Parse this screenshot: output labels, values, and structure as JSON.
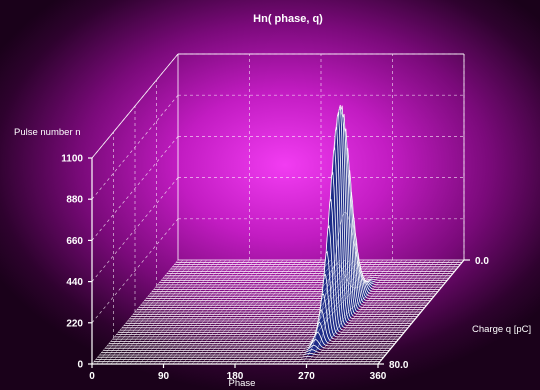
{
  "chart_data": {
    "type": "surface3d",
    "title": "Hn( phase, q)",
    "xlabel": "Phase",
    "ylabel": "Charge q  [pC]",
    "zlabel": "Pulse number n",
    "x_ticks": [
      "0",
      "90",
      "180",
      "270",
      "360"
    ],
    "y_ticks": [
      "0.0",
      "80.0"
    ],
    "z_ticks": [
      "0",
      "220",
      "440",
      "660",
      "880",
      "1100"
    ],
    "xlim": [
      0,
      360
    ],
    "ylim": [
      0,
      80
    ],
    "zlim": [
      0,
      1100
    ],
    "grid": true,
    "peak": {
      "phase": 265,
      "charge": 35,
      "pulse_number": 1150
    }
  },
  "colors": {
    "surface_line": "#ffffff",
    "surface_fill": "#1e2c88",
    "grid": "#ffffff"
  }
}
